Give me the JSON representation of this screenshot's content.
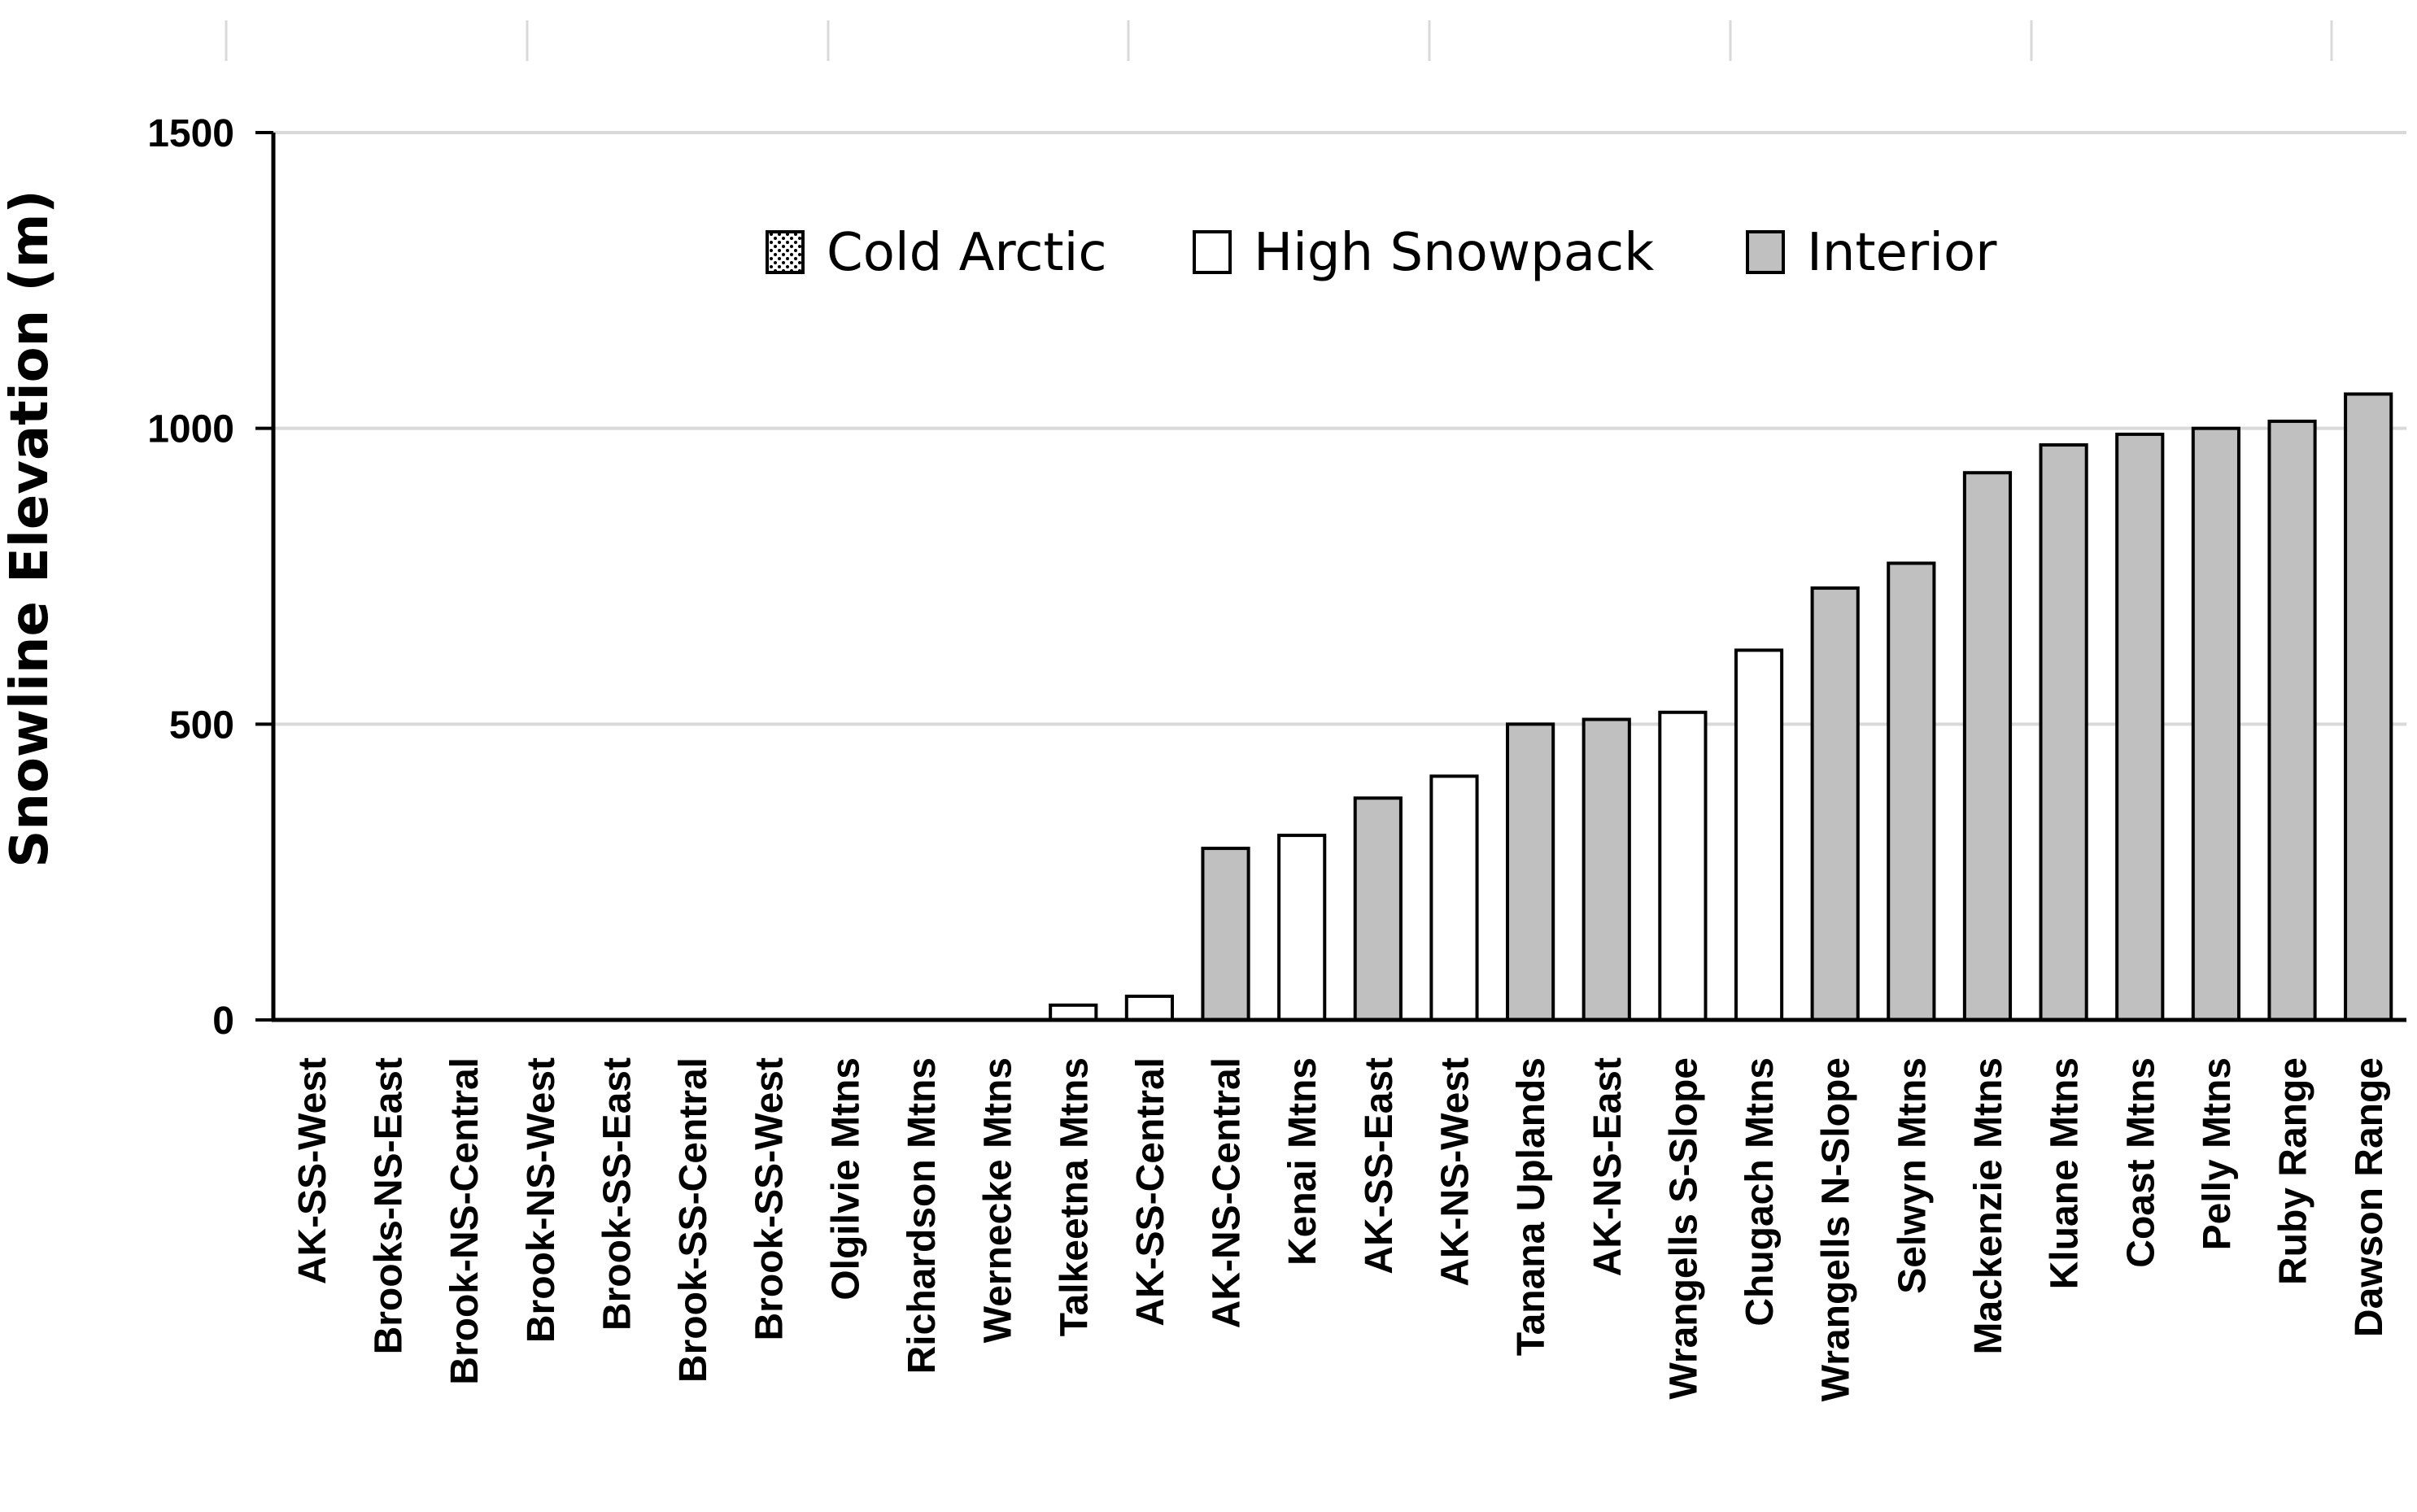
{
  "chart_data": {
    "type": "bar",
    "title": "",
    "xlabel": "",
    "ylabel": "Snowline Elevation (m)",
    "ylim": [
      0,
      1500
    ],
    "yticks": [
      0,
      500,
      1000,
      1500
    ],
    "grid": true,
    "legend_position": "top-center",
    "categories": [
      "AK-SS-West",
      "Brooks-NS-East",
      "Brook-NS-Central",
      "Brook-NS-West",
      "Brook-SS-East",
      "Brook-SS-Central",
      "Brook-SS-West",
      "Olgilvie Mtns",
      "Richardson Mtns",
      "Wernecke Mtns",
      "Talkeetna Mtns",
      "AK-SS-Central",
      "AK-NS-Central",
      "Kenai Mtns",
      "AK-SS-East",
      "AK-NS-West",
      "Tanana Uplands",
      "AK-NS-East",
      "Wrangells S-Slope",
      "Chugach Mtns",
      "Wrangells N-Slope",
      "Selwyn Mtns",
      "Mackenzie Mtns",
      "Kluane Mtns",
      "Coast Mtns",
      "Pelly Mtns",
      "Ruby Range",
      "Dawson Range"
    ],
    "values": [
      0,
      0,
      0,
      0,
      0,
      0,
      0,
      0,
      0,
      0,
      25,
      40,
      290,
      312,
      375,
      412,
      500,
      508,
      520,
      625,
      730,
      772,
      925,
      972,
      990,
      1000,
      1012,
      1058
    ],
    "groups": [
      "Cold Arctic",
      "Cold Arctic",
      "Cold Arctic",
      "Cold Arctic",
      "Cold Arctic",
      "Cold Arctic",
      "Cold Arctic",
      "Cold Arctic",
      "Cold Arctic",
      "Cold Arctic",
      "High Snowpack",
      "High Snowpack",
      "Interior",
      "High Snowpack",
      "Interior",
      "High Snowpack",
      "Interior",
      "Interior",
      "High Snowpack",
      "High Snowpack",
      "Interior",
      "Interior",
      "Interior",
      "Interior",
      "Interior",
      "Interior",
      "Interior",
      "Interior"
    ],
    "legend": [
      {
        "name": "Cold Arctic",
        "fill": "dotted"
      },
      {
        "name": "High Snowpack",
        "fill": "#ffffff"
      },
      {
        "name": "Interior",
        "fill": "#c0c0c0"
      }
    ],
    "colors": {
      "interior": "#c0c0c0",
      "high_snowpack": "#ffffff",
      "edge": "#000000",
      "grid": "#d9d9d9"
    }
  }
}
